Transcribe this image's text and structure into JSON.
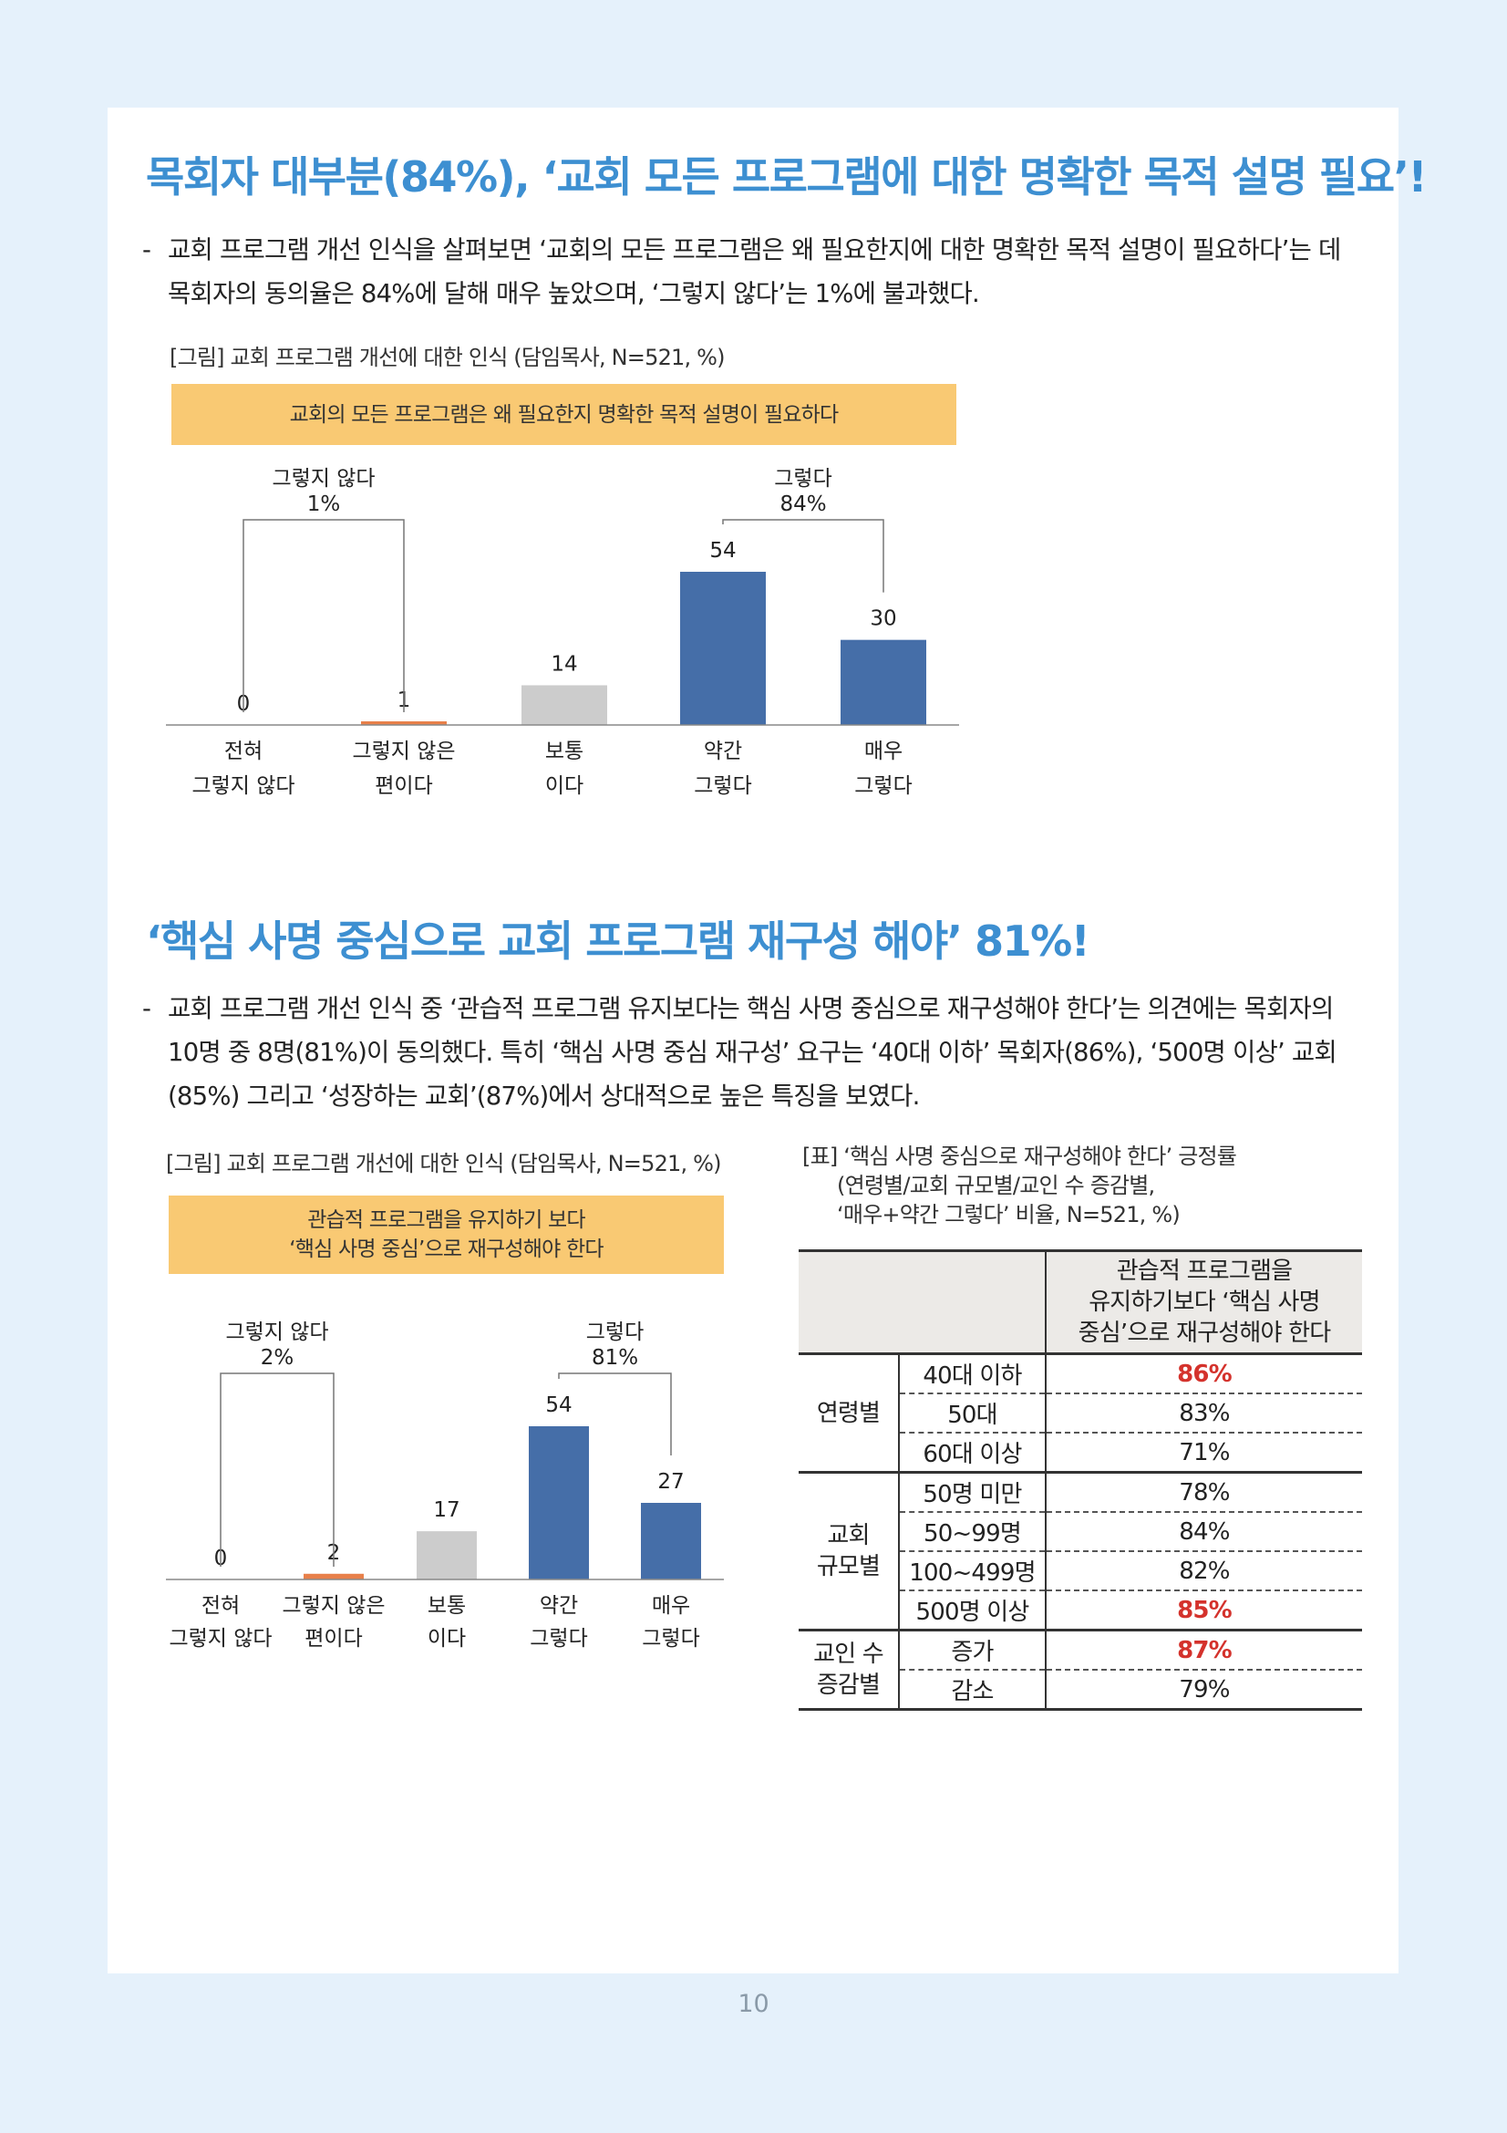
{
  "page_number": "10",
  "section1": {
    "headline": "목회자 대부분(84%), ‘교회 모든 프로그램에 대한 명확한 목적 설명 필요’!",
    "bullet": "-",
    "paragraph": "교회 프로그램 개선 인식을 살펴보면 ‘교회의 모든 프로그램은 왜 필요한지에 대한 명확한 목적 설명이 필요하다’는 데 목회자의 동의율은 84%에 달해 매우 높았으며, ‘그렇지 않다’는 1%에 불과했다.",
    "caption": "[그림] 교회 프로그램 개선에 대한 인식 (담임목사, N=521, %)",
    "banner_lines": [
      "교회의 모든 프로그램은 왜 필요한지 명확한 목적 설명이 필요하다"
    ]
  },
  "section2": {
    "headline": "‘핵심 사명 중심으로 교회 프로그램 재구성 해야’ 81%!",
    "bullet": "-",
    "paragraph": "교회 프로그램 개선 인식 중 ‘관습적 프로그램 유지보다는 핵심 사명 중심으로 재구성해야 한다’는 의견에는 목회자의 10명 중 8명(81%)이 동의했다. 특히 ‘핵심 사명 중심 재구성’ 요구는 ‘40대 이하’ 목회자(86%), ‘500명 이상’ 교회(85%) 그리고 ‘성장하는 교회’(87%)에서 상대적으로 높은 특징을 보였다.",
    "caption": "[그림] 교회 프로그램 개선에 대한 인식  (담임목사, N=521, %)",
    "banner_lines": [
      "관습적 프로그램을 유지하기 보다",
      "‘핵심 사명 중심’으로 재구성해야 한다"
    ]
  },
  "chart_data": [
    {
      "type": "bar",
      "categories": [
        [
          "전혀",
          "그렇지 않다"
        ],
        [
          "그렇지 않은",
          "편이다"
        ],
        [
          "보통",
          "이다"
        ],
        [
          "약간",
          "그렇다"
        ],
        [
          "매우",
          "그렇다"
        ]
      ],
      "values": [
        0,
        1,
        14,
        54,
        30
      ],
      "colors": [
        "#e8804a",
        "#e8804a",
        "#cccccc",
        "#456ea8",
        "#456ea8"
      ],
      "groups": [
        {
          "label": "그렇지 않다",
          "value": "1%"
        },
        {
          "label": "그렇다",
          "value": "84%"
        }
      ]
    },
    {
      "type": "bar",
      "categories": [
        [
          "전혀",
          "그렇지 않다"
        ],
        [
          "그렇지 않은",
          "편이다"
        ],
        [
          "보통",
          "이다"
        ],
        [
          "약간",
          "그렇다"
        ],
        [
          "매우",
          "그렇다"
        ]
      ],
      "values": [
        0,
        2,
        17,
        54,
        27
      ],
      "colors": [
        "#e8804a",
        "#e8804a",
        "#cccccc",
        "#456ea8",
        "#456ea8"
      ],
      "groups": [
        {
          "label": "그렇지 않다",
          "value": "2%"
        },
        {
          "label": "그렇다",
          "value": "81%"
        }
      ]
    }
  ],
  "table": {
    "caption_lines": [
      "[표] ‘핵심 사명 중심으로 재구성해야 한다’ 긍정률",
      "(연령별/교회 규모별/교인 수 증감별,",
      "‘매우+약간 그렇다’ 비율, N=521, %)"
    ],
    "header_lines": [
      "관습적 프로그램을",
      "유지하기보다 ‘핵심 사명",
      "중심’으로 재구성해야 한다"
    ],
    "groups": [
      {
        "label_lines": [
          "연령별"
        ],
        "rows": [
          {
            "label": "40대 이하",
            "value": "86%",
            "highlight": true
          },
          {
            "label": "50대",
            "value": "83%",
            "highlight": false
          },
          {
            "label": "60대 이상",
            "value": "71%",
            "highlight": false
          }
        ]
      },
      {
        "label_lines": [
          "교회",
          "규모별"
        ],
        "rows": [
          {
            "label": "50명 미만",
            "value": "78%",
            "highlight": false
          },
          {
            "label": "50~99명",
            "value": "84%",
            "highlight": false
          },
          {
            "label": "100~499명",
            "value": "82%",
            "highlight": false
          },
          {
            "label": "500명 이상",
            "value": "85%",
            "highlight": true
          }
        ]
      },
      {
        "label_lines": [
          "교인 수",
          "증감별"
        ],
        "rows": [
          {
            "label": "증가",
            "value": "87%",
            "highlight": true
          },
          {
            "label": "감소",
            "value": "79%",
            "highlight": false
          }
        ]
      }
    ]
  }
}
